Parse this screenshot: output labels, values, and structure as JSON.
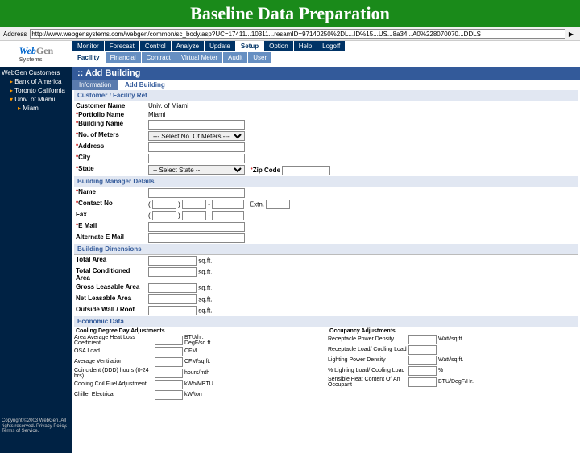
{
  "slide_title": "Baseline Data Preparation",
  "address": {
    "label": "Address",
    "value": "http://www.webgensystems.com/webgen/common/sc_body.asp?UC=17411...10311...resamID=97140250%2DL...ID%15...US...8a34...A0%228070070...DDLS"
  },
  "logo": {
    "brand_a": "Web",
    "brand_b": "Gen",
    "sub": "Systems"
  },
  "nav_l1": [
    "Monitor",
    "Forecast",
    "Control",
    "Analyze",
    "Update",
    "Setup",
    "Option",
    "Help",
    "Logoff"
  ],
  "nav_l1_active": 5,
  "nav_l2": [
    "Facility",
    "Financial",
    "Contract",
    "Virtual Meter",
    "Audit",
    "User"
  ],
  "nav_l2_active": 0,
  "tree": {
    "header": "WebGen Customers",
    "items": [
      {
        "label": "Bank of America"
      },
      {
        "label": "Toronto California"
      },
      {
        "label": "Univ. of Miami",
        "expanded": true,
        "children": [
          {
            "label": "Miami"
          }
        ]
      }
    ]
  },
  "copy": "Copyright ©2003 WebGen. All rights reserved. Privacy Policy. Terms of Service.",
  "page": {
    "title": ":: Add Building",
    "subtabs": [
      "Information",
      "Add Building"
    ],
    "active_subtab": 1
  },
  "sections": {
    "cust": {
      "title": "Customer / Facility Ref",
      "rows": [
        {
          "label": "Customer Name",
          "req": false,
          "val": "Univ. of Miami",
          "read": true
        },
        {
          "label": "Portfolio Name",
          "req": true,
          "val": "Miami",
          "read": true
        },
        {
          "label": "Building Name",
          "req": true,
          "input": "text"
        },
        {
          "label": "No. of Meters",
          "req": true,
          "input": "select",
          "placeholder": "--- Select No. Of Meters ---"
        },
        {
          "label": "Address",
          "req": true,
          "input": "text"
        },
        {
          "label": "City",
          "req": true,
          "input": "text"
        },
        {
          "label": "State",
          "req": true,
          "input": "select",
          "placeholder": "-- Select State --",
          "extra_label": "Zip Code",
          "extra_req": true
        }
      ]
    },
    "mgr": {
      "title": "Building Manager Details",
      "rows": [
        {
          "label": "Name",
          "req": true,
          "input": "text"
        },
        {
          "label": "Contact No",
          "req": true,
          "input": "phone",
          "extra": "Extn."
        },
        {
          "label": "Fax",
          "req": false,
          "input": "phone"
        },
        {
          "label": "E Mail",
          "req": true,
          "input": "text"
        },
        {
          "label": "Alternate E Mail",
          "req": false,
          "input": "text"
        }
      ]
    },
    "dim": {
      "title": "Building Dimensions",
      "rows": [
        {
          "label": "Total Area",
          "unit": "sq.ft."
        },
        {
          "label": "Total Conditioned Area",
          "unit": "sq.ft."
        },
        {
          "label": "Gross Leasable Area",
          "unit": "sq.ft."
        },
        {
          "label": "Net Leasable Area",
          "unit": "sq.ft."
        },
        {
          "label": "Outside Wall / Roof",
          "unit": "sq.ft."
        }
      ]
    },
    "econ": {
      "title": "Economic Data",
      "left_header": "Cooling Degree Day Adjustments",
      "right_header": "Occupancy Adjustments",
      "left": [
        {
          "label": "Area Average Heat Loss Coefficient",
          "unit": "BTU/hr. DegF/sq.ft."
        },
        {
          "label": "OSA Load",
          "unit": "CFM"
        },
        {
          "label": "Average Ventilation",
          "unit": "CFM/sq.ft."
        },
        {
          "label": "Coincident (DDD) hours (0-24 hrs)",
          "unit": "hours/mth"
        },
        {
          "label": "Cooling Coil Fuel Adjustment",
          "unit": "kWh/MBTU"
        },
        {
          "label": "Chiller Electrical",
          "unit": "kW/ton"
        }
      ],
      "right": [
        {
          "label": "Receptacle Power Density",
          "unit": "Watt/sq.ft"
        },
        {
          "label": "Receptacle Load/ Cooling Load",
          "unit": ""
        },
        {
          "label": "Lighting Power Density",
          "unit": "Watt/sq.ft."
        },
        {
          "label": "% Lighting Load/ Cooling Load",
          "unit": "%"
        },
        {
          "label": "Sensible Heat Content Of An Occupant",
          "unit": "BTU/DegF/Hr."
        }
      ]
    }
  }
}
